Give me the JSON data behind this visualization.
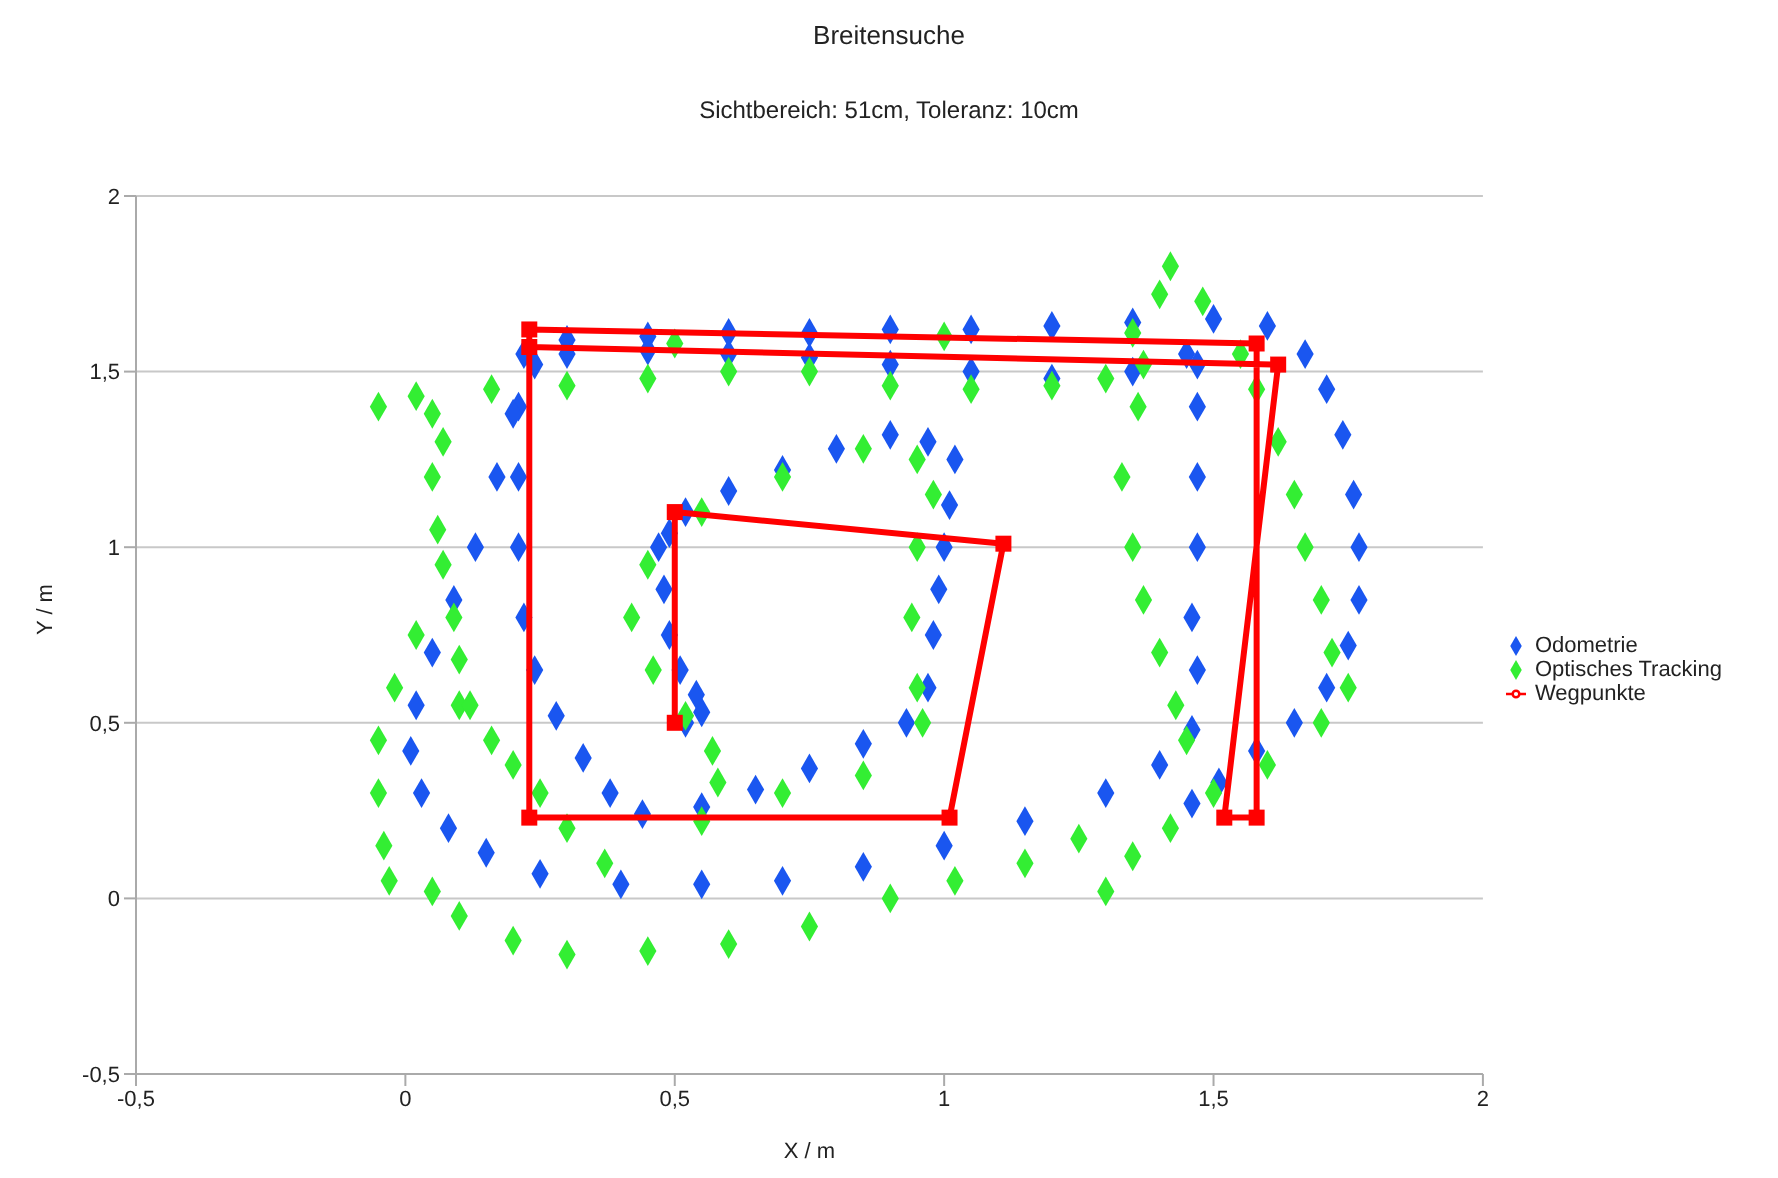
{
  "chart_data": {
    "type": "scatter",
    "title": "Breitensuche",
    "subtitle": "Sichtbereich: 51cm, Toleranz: 10cm",
    "xlabel": "X / m",
    "ylabel": "Y / m",
    "xlim": [
      -0.5,
      2
    ],
    "ylim": [
      -0.5,
      2
    ],
    "xticks": [
      {
        "value": -0.5,
        "label": "-0,5"
      },
      0,
      {
        "value": 0.5,
        "label": "0,5"
      },
      1,
      {
        "value": 1.5,
        "label": "1,5"
      },
      2
    ],
    "yticks": [
      {
        "value": -0.5,
        "label": "-0,5"
      },
      0,
      {
        "value": 0.5,
        "label": "0,5"
      },
      1,
      {
        "value": 1.5,
        "label": "1,5"
      },
      2
    ],
    "grid": "y",
    "legend": "right",
    "series": [
      {
        "name": "Odometrie",
        "type": "scatter",
        "marker": "diamond",
        "color": "#1a56f0",
        "x": [
          0.52,
          0.55,
          0.54,
          0.51,
          0.49,
          0.48,
          0.47,
          0.49,
          0.52,
          0.6,
          0.7,
          0.8,
          0.9,
          0.97,
          1.02,
          1.01,
          1.0,
          0.99,
          0.98,
          0.97,
          0.93,
          0.85,
          0.75,
          0.65,
          0.55,
          0.44,
          0.38,
          0.33,
          0.28,
          0.24,
          0.22,
          0.21,
          0.21,
          0.21,
          0.22,
          0.3,
          0.45,
          0.6,
          0.75,
          0.9,
          1.05,
          1.2,
          1.35,
          1.5,
          1.6,
          1.67,
          1.71,
          1.74,
          1.76,
          1.77,
          1.77,
          1.75,
          1.71,
          1.65,
          1.58,
          1.51,
          1.46,
          1.45,
          1.35,
          1.2,
          1.05,
          0.9,
          0.75,
          0.6,
          0.45,
          0.3,
          0.24,
          0.2,
          0.17,
          0.13,
          0.09,
          0.05,
          0.02,
          0.01,
          0.03,
          0.08,
          0.15,
          0.25,
          0.4,
          0.55,
          0.7,
          0.85,
          1.0,
          1.15,
          1.3,
          1.4,
          1.46,
          1.47,
          1.46,
          1.47,
          1.47,
          1.47,
          1.47
        ],
        "values": [
          0.5,
          0.53,
          0.58,
          0.65,
          0.75,
          0.88,
          1.0,
          1.04,
          1.1,
          1.16,
          1.22,
          1.28,
          1.32,
          1.3,
          1.25,
          1.12,
          1.0,
          0.88,
          0.75,
          0.6,
          0.5,
          0.44,
          0.37,
          0.31,
          0.26,
          0.24,
          0.3,
          0.4,
          0.52,
          0.65,
          0.8,
          1.0,
          1.2,
          1.4,
          1.55,
          1.59,
          1.6,
          1.61,
          1.61,
          1.62,
          1.62,
          1.63,
          1.64,
          1.65,
          1.63,
          1.55,
          1.45,
          1.32,
          1.15,
          1.0,
          0.85,
          0.72,
          0.6,
          0.5,
          0.42,
          0.33,
          0.27,
          1.55,
          1.5,
          1.48,
          1.5,
          1.52,
          1.54,
          1.55,
          1.56,
          1.55,
          1.52,
          1.38,
          1.2,
          1.0,
          0.85,
          0.7,
          0.55,
          0.42,
          0.3,
          0.2,
          0.13,
          0.07,
          0.04,
          0.04,
          0.05,
          0.09,
          0.15,
          0.22,
          0.3,
          0.38,
          0.48,
          0.65,
          0.8,
          1.0,
          1.2,
          1.4,
          1.52
        ]
      },
      {
        "name": "Optisches Tracking",
        "type": "scatter",
        "marker": "diamond",
        "color": "#33ee33",
        "x": [
          -0.05,
          0.02,
          0.05,
          0.07,
          0.05,
          0.06,
          0.07,
          0.09,
          0.1,
          0.1,
          0.02,
          -0.02,
          -0.05,
          -0.05,
          -0.04,
          -0.03,
          0.16,
          0.3,
          0.45,
          0.6,
          0.75,
          0.9,
          1.05,
          1.2,
          1.3,
          1.37,
          0.5,
          1.0,
          1.35,
          1.4,
          1.42,
          1.48,
          0.12,
          0.16,
          0.2,
          0.25,
          0.3,
          0.37,
          0.05,
          0.1,
          0.2,
          0.3,
          0.45,
          0.6,
          0.75,
          0.9,
          1.02,
          1.15,
          1.25,
          1.3,
          1.35,
          1.42,
          1.5,
          1.6,
          1.7,
          1.75,
          1.72,
          1.7,
          1.67,
          1.65,
          1.62,
          1.58,
          1.55,
          1.36,
          1.33,
          1.35,
          1.37,
          1.4,
          1.43,
          1.45,
          0.55,
          0.7,
          0.85,
          0.95,
          0.98,
          0.95,
          0.94,
          0.95,
          0.96,
          0.85,
          0.7,
          0.55,
          0.45,
          0.42,
          0.46,
          0.52,
          0.57,
          0.58
        ],
        "values": [
          1.4,
          1.43,
          1.38,
          1.3,
          1.2,
          1.05,
          0.95,
          0.8,
          0.68,
          0.55,
          0.75,
          0.6,
          0.45,
          0.3,
          0.15,
          0.05,
          1.45,
          1.46,
          1.48,
          1.5,
          1.5,
          1.46,
          1.45,
          1.46,
          1.48,
          1.52,
          1.58,
          1.6,
          1.61,
          1.72,
          1.8,
          1.7,
          0.55,
          0.45,
          0.38,
          0.3,
          0.2,
          0.1,
          0.02,
          -0.05,
          -0.12,
          -0.16,
          -0.15,
          -0.13,
          -0.08,
          0.0,
          0.05,
          0.1,
          0.17,
          0.02,
          0.12,
          0.2,
          0.3,
          0.38,
          0.5,
          0.6,
          0.7,
          0.85,
          1.0,
          1.15,
          1.3,
          1.45,
          1.55,
          1.4,
          1.2,
          1.0,
          0.85,
          0.7,
          0.55,
          0.45,
          1.1,
          1.2,
          1.28,
          1.25,
          1.15,
          1.0,
          0.8,
          0.6,
          0.5,
          0.35,
          0.3,
          0.22,
          0.95,
          0.8,
          0.65,
          0.52,
          0.42,
          0.33
        ]
      },
      {
        "name": "Wegpunkte",
        "type": "line",
        "marker": "square",
        "line_style": "solid",
        "color": "#ff0000",
        "x": [
          0.5,
          0.5,
          1.11,
          1.01,
          0.23,
          0.23,
          1.58,
          1.58,
          1.52,
          1.62,
          0.23
        ],
        "values": [
          0.5,
          1.1,
          1.01,
          0.23,
          0.23,
          1.62,
          1.58,
          0.23,
          0.23,
          1.52,
          1.57
        ]
      }
    ]
  }
}
